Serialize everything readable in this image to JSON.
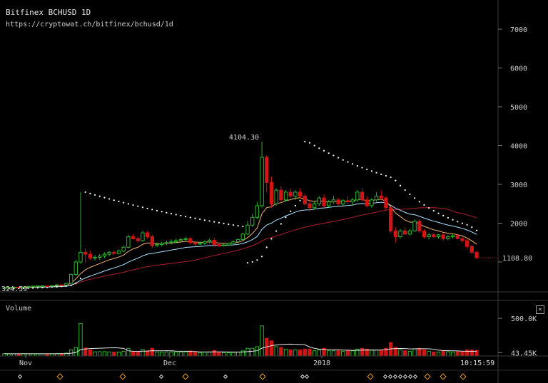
{
  "header": {
    "title": "Bitfinex BCHUSD 1D",
    "url": "https://cryptowat.ch/bitfinex/bchusd/1d"
  },
  "volume_panel": {
    "label": "Volume",
    "toggle_symbol": "✕",
    "axis_ticks": [
      "500.0K",
      "43.45K"
    ]
  },
  "time_axis": {
    "labels": [
      "Nov",
      "Dec",
      "2018"
    ],
    "clock": "10:15:59"
  },
  "colors": {
    "up": "#2db52d",
    "down": "#d01515",
    "ema_fast": "#f0b070",
    "ema_slow": "#a8e0ff",
    "sma_long": "#b01f2b",
    "sar_dots": "#ffffff",
    "event_marker": "#e09a2a"
  },
  "chart_data": {
    "type": "candlestick",
    "symbol": "BCHUSD",
    "exchange": "Bitfinex",
    "interval": "1D",
    "y_ticks": [
      2000,
      3000,
      4000,
      5000,
      6000,
      7000
    ],
    "ylim": [
      300,
      7500
    ],
    "annotations": {
      "high": 4104.3,
      "last_price": 1108.8,
      "low_label": "324.59"
    },
    "candles": [
      [
        330,
        340,
        315,
        335
      ],
      [
        335,
        350,
        330,
        345
      ],
      [
        345,
        360,
        340,
        350
      ],
      [
        350,
        355,
        338,
        342
      ],
      [
        342,
        360,
        335,
        355
      ],
      [
        355,
        375,
        350,
        370
      ],
      [
        370,
        385,
        362,
        378
      ],
      [
        378,
        390,
        370,
        382
      ],
      [
        382,
        395,
        372,
        385
      ],
      [
        385,
        390,
        370,
        375
      ],
      [
        375,
        395,
        370,
        392
      ],
      [
        392,
        420,
        385,
        410
      ],
      [
        410,
        430,
        400,
        405
      ],
      [
        405,
        460,
        400,
        450
      ],
      [
        450,
        700,
        440,
        680
      ],
      [
        680,
        1050,
        650,
        1000
      ],
      [
        1000,
        2800,
        950,
        1250
      ],
      [
        1250,
        1350,
        980,
        1200
      ],
      [
        1200,
        1300,
        1050,
        1100
      ],
      [
        1100,
        1180,
        1040,
        1120
      ],
      [
        1120,
        1200,
        1050,
        1150
      ],
      [
        1150,
        1250,
        1100,
        1200
      ],
      [
        1200,
        1280,
        1150,
        1250
      ],
      [
        1250,
        1300,
        1180,
        1220
      ],
      [
        1220,
        1320,
        1200,
        1280
      ],
      [
        1280,
        1420,
        1250,
        1380
      ],
      [
        1380,
        1700,
        1350,
        1650
      ],
      [
        1650,
        1720,
        1580,
        1600
      ],
      [
        1600,
        1650,
        1500,
        1550
      ],
      [
        1550,
        1800,
        1520,
        1750
      ],
      [
        1750,
        1800,
        1600,
        1650
      ],
      [
        1650,
        1700,
        1350,
        1420
      ],
      [
        1420,
        1500,
        1380,
        1450
      ],
      [
        1450,
        1520,
        1400,
        1480
      ],
      [
        1480,
        1560,
        1430,
        1500
      ],
      [
        1500,
        1580,
        1450,
        1520
      ],
      [
        1520,
        1600,
        1480,
        1550
      ],
      [
        1550,
        1620,
        1500,
        1580
      ],
      [
        1580,
        1650,
        1520,
        1600
      ],
      [
        1600,
        1640,
        1450,
        1500
      ],
      [
        1500,
        1550,
        1420,
        1460
      ],
      [
        1460,
        1520,
        1430,
        1480
      ],
      [
        1480,
        1560,
        1440,
        1520
      ],
      [
        1520,
        1600,
        1480,
        1560
      ],
      [
        1560,
        1620,
        1400,
        1450
      ],
      [
        1450,
        1500,
        1380,
        1420
      ],
      [
        1420,
        1480,
        1400,
        1440
      ],
      [
        1440,
        1500,
        1420,
        1480
      ],
      [
        1480,
        1560,
        1460,
        1520
      ],
      [
        1520,
        1600,
        1480,
        1580
      ],
      [
        1580,
        1750,
        1560,
        1720
      ],
      [
        1720,
        2050,
        1700,
        1950
      ],
      [
        1950,
        2250,
        1900,
        2150
      ],
      [
        2150,
        2550,
        2100,
        2450
      ],
      [
        2450,
        4104,
        2400,
        3700
      ],
      [
        3700,
        3750,
        2800,
        3050
      ],
      [
        3050,
        3200,
        2400,
        2500
      ],
      [
        2500,
        2900,
        2450,
        2850
      ],
      [
        2850,
        2950,
        2550,
        2600
      ],
      [
        2600,
        2850,
        2550,
        2800
      ],
      [
        2800,
        2900,
        2650,
        2700
      ],
      [
        2700,
        2850,
        2600,
        2800
      ],
      [
        2800,
        2900,
        2650,
        2700
      ],
      [
        2700,
        2750,
        2450,
        2500
      ],
      [
        2500,
        2600,
        2300,
        2400
      ],
      [
        2400,
        2550,
        2350,
        2500
      ],
      [
        2500,
        2700,
        2450,
        2650
      ],
      [
        2650,
        2750,
        2400,
        2450
      ],
      [
        2450,
        2600,
        2400,
        2550
      ],
      [
        2550,
        2700,
        2500,
        2600
      ],
      [
        2600,
        2650,
        2450,
        2500
      ],
      [
        2500,
        2620,
        2450,
        2580
      ],
      [
        2580,
        2700,
        2500,
        2550
      ],
      [
        2550,
        2650,
        2450,
        2600
      ],
      [
        2600,
        2850,
        2550,
        2800
      ],
      [
        2800,
        2900,
        2550,
        2600
      ],
      [
        2600,
        2700,
        2400,
        2450
      ],
      [
        2450,
        2650,
        2400,
        2600
      ],
      [
        2600,
        2800,
        2550,
        2700
      ],
      [
        2700,
        2850,
        2600,
        2650
      ],
      [
        2650,
        2700,
        2350,
        2400
      ],
      [
        2400,
        2450,
        1750,
        1800
      ],
      [
        1800,
        1900,
        1500,
        1650
      ],
      [
        1650,
        1850,
        1600,
        1800
      ],
      [
        1800,
        1900,
        1700,
        1720
      ],
      [
        1720,
        1850,
        1680,
        1800
      ],
      [
        1800,
        2100,
        1780,
        2050
      ],
      [
        2050,
        2100,
        1750,
        1800
      ],
      [
        1800,
        1850,
        1600,
        1650
      ],
      [
        1650,
        1750,
        1580,
        1700
      ],
      [
        1700,
        1750,
        1620,
        1650
      ],
      [
        1650,
        1720,
        1600,
        1700
      ],
      [
        1700,
        1750,
        1550,
        1600
      ],
      [
        1600,
        1700,
        1560,
        1650
      ],
      [
        1650,
        1720,
        1600,
        1680
      ],
      [
        1680,
        1720,
        1580,
        1600
      ],
      [
        1600,
        1650,
        1500,
        1550
      ],
      [
        1550,
        1600,
        1350,
        1400
      ],
      [
        1400,
        1450,
        1200,
        1250
      ],
      [
        1250,
        1300,
        1080,
        1108.8
      ]
    ],
    "volume_scale_max": 700000
  }
}
